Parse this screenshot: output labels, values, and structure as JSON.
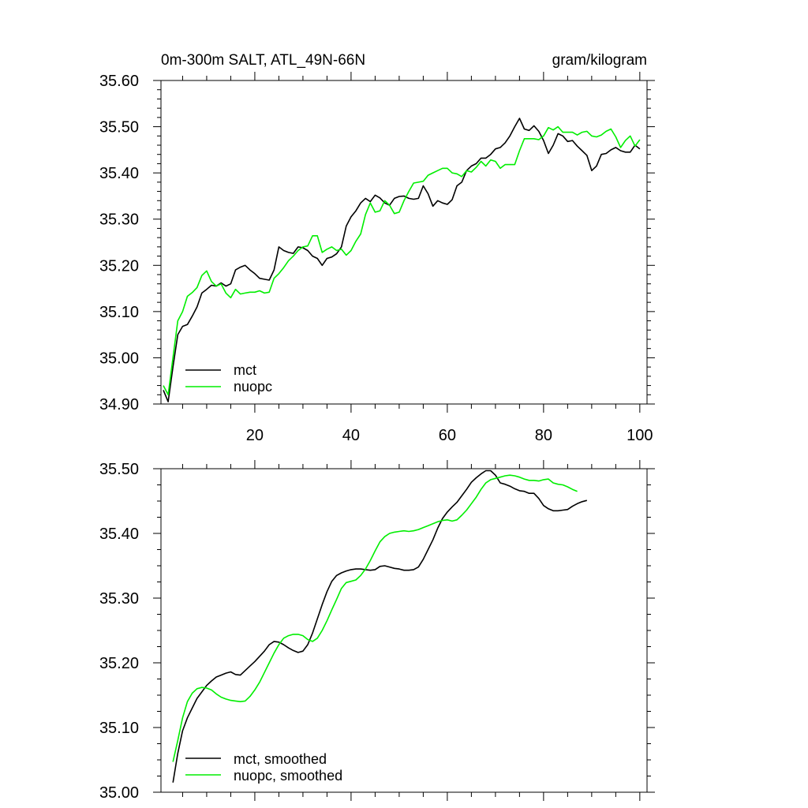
{
  "chart_data": [
    {
      "type": "line",
      "title_left": "0m-300m SALT, ATL_49N-66N",
      "title_right": "gram/kilogram",
      "xlim": [
        0.5,
        101.5
      ],
      "ylim": [
        34.9,
        35.6
      ],
      "x_major_ticks": [
        20,
        40,
        60,
        80,
        100
      ],
      "x_tick_labels": [
        "20",
        "40",
        "60",
        "80",
        "100"
      ],
      "y_major_ticks": [
        34.9,
        35.0,
        35.1,
        35.2,
        35.3,
        35.4,
        35.5,
        35.6
      ],
      "y_tick_labels": [
        "34.90",
        "35.00",
        "35.10",
        "35.20",
        "35.30",
        "35.40",
        "35.50",
        "35.60"
      ],
      "legend_position": "bottom-left",
      "series": [
        {
          "name": "mct",
          "color": "#000000",
          "x_start": 1,
          "values": [
            34.93,
            34.905,
            34.98,
            35.05,
            35.068,
            35.072,
            35.09,
            35.11,
            35.14,
            35.148,
            35.157,
            35.155,
            35.162,
            35.155,
            35.16,
            35.19,
            35.196,
            35.2,
            35.19,
            35.182,
            35.172,
            35.17,
            35.168,
            35.19,
            35.24,
            35.232,
            35.228,
            35.226,
            35.24,
            35.238,
            35.232,
            35.22,
            35.215,
            35.2,
            35.215,
            35.218,
            35.225,
            35.24,
            35.285,
            35.305,
            35.318,
            35.335,
            35.345,
            35.338,
            35.352,
            35.346,
            35.335,
            35.33,
            35.345,
            35.349,
            35.35,
            35.345,
            35.343,
            35.345,
            35.372,
            35.355,
            35.328,
            35.34,
            35.335,
            35.332,
            35.342,
            35.372,
            35.38,
            35.405,
            35.415,
            35.42,
            35.432,
            35.432,
            35.44,
            35.452,
            35.455,
            35.465,
            35.48,
            35.5,
            35.518,
            35.495,
            35.492,
            35.502,
            35.49,
            35.47,
            35.442,
            35.46,
            35.485,
            35.48,
            35.468,
            35.47,
            35.458,
            35.448,
            35.438,
            35.405,
            35.415,
            35.44,
            35.442,
            35.45,
            35.455,
            35.448,
            35.445,
            35.445,
            35.46,
            35.452
          ],
          "smoothed_name": "mct, smoothed",
          "smoothed_x_start": 3,
          "smoothed_values": [
            35.015,
            35.06,
            35.095,
            35.115,
            35.13,
            35.145,
            35.155,
            35.165,
            35.172,
            35.178,
            35.181,
            35.184,
            35.186,
            35.182,
            35.181,
            35.188,
            35.195,
            35.202,
            35.21,
            35.218,
            35.228,
            35.233,
            35.232,
            35.228,
            35.223,
            35.219,
            35.216,
            35.218,
            35.228,
            35.246,
            35.268,
            35.29,
            35.31,
            35.326,
            35.335,
            35.339,
            35.342,
            35.344,
            35.345,
            35.345,
            35.344,
            35.343,
            35.344,
            35.349,
            35.35,
            35.348,
            35.346,
            35.345,
            35.343,
            35.343,
            35.344,
            35.348,
            35.36,
            35.375,
            35.39,
            35.408,
            35.423,
            35.433,
            35.441,
            35.448,
            35.458,
            35.468,
            35.479,
            35.486,
            35.492,
            35.497,
            35.497,
            35.49,
            35.478,
            35.476,
            35.473,
            35.469,
            35.466,
            35.465,
            35.462,
            35.462,
            35.454,
            35.443,
            35.438,
            35.435,
            35.435,
            35.436,
            35.437,
            35.442,
            35.446,
            35.449,
            35.451
          ]
        },
        {
          "name": "nuopc",
          "color": "#00ee00",
          "x_start": 1,
          "values": [
            34.94,
            34.92,
            35.0,
            35.08,
            35.1,
            35.133,
            35.141,
            35.152,
            35.178,
            35.188,
            35.165,
            35.155,
            35.16,
            35.14,
            35.13,
            35.148,
            35.138,
            35.14,
            35.142,
            35.142,
            35.145,
            35.14,
            35.142,
            35.172,
            35.182,
            35.195,
            35.21,
            35.22,
            35.232,
            35.24,
            35.242,
            35.264,
            35.264,
            35.228,
            35.235,
            35.24,
            35.232,
            35.235,
            35.222,
            35.232,
            35.252,
            35.268,
            35.31,
            35.335,
            35.315,
            35.318,
            35.34,
            35.33,
            35.312,
            35.315,
            35.34,
            35.36,
            35.378,
            35.38,
            35.382,
            35.395,
            35.4,
            35.405,
            35.41,
            35.41,
            35.4,
            35.398,
            35.392,
            35.405,
            35.402,
            35.412,
            35.425,
            35.415,
            35.428,
            35.425,
            35.41,
            35.418,
            35.418,
            35.418,
            35.448,
            35.474,
            35.474,
            35.474,
            35.472,
            35.48,
            35.498,
            35.493,
            35.5,
            35.488,
            35.488,
            35.488,
            35.482,
            35.488,
            35.49,
            35.48,
            35.478,
            35.482,
            35.49,
            35.495,
            35.478,
            35.455,
            35.47,
            35.48,
            35.458,
            35.472
          ],
          "smoothed_name": "nuopc, smoothed",
          "smoothed_x_start": 3,
          "smoothed_values": [
            35.047,
            35.08,
            35.115,
            35.14,
            35.153,
            35.16,
            35.162,
            35.161,
            35.158,
            35.152,
            35.147,
            35.144,
            35.142,
            35.141,
            35.14,
            35.141,
            35.148,
            35.158,
            35.17,
            35.185,
            35.2,
            35.215,
            35.228,
            35.238,
            35.242,
            35.244,
            35.244,
            35.242,
            35.236,
            35.233,
            35.238,
            35.25,
            35.265,
            35.282,
            35.298,
            35.315,
            35.324,
            35.326,
            35.328,
            35.335,
            35.345,
            35.358,
            35.373,
            35.387,
            35.395,
            35.4,
            35.402,
            35.403,
            35.404,
            35.403,
            35.404,
            35.406,
            35.409,
            35.412,
            35.415,
            35.418,
            35.42,
            35.421,
            35.419,
            35.421,
            35.428,
            35.436,
            35.446,
            35.456,
            35.468,
            35.478,
            35.483,
            35.485,
            35.487,
            35.489,
            35.49,
            35.489,
            35.487,
            35.484,
            35.482,
            35.482,
            35.481,
            35.483,
            35.484,
            35.478,
            35.476,
            35.475,
            35.472,
            35.468,
            35.465
          ]
        }
      ]
    },
    {
      "type": "line",
      "xlim": [
        0.5,
        101.5
      ],
      "ylim": [
        35.0,
        35.5
      ],
      "y_major_ticks": [
        35.0,
        35.1,
        35.2,
        35.3,
        35.4,
        35.5
      ],
      "y_tick_labels": [
        "35.00",
        "35.10",
        "35.20",
        "35.30",
        "35.40",
        "35.50"
      ],
      "legend_position": "bottom-left",
      "series_ref": "smoothed"
    }
  ],
  "legend": {
    "top": [
      "mct",
      "nuopc"
    ],
    "bottom": [
      "mct, smoothed",
      "nuopc, smoothed"
    ]
  }
}
